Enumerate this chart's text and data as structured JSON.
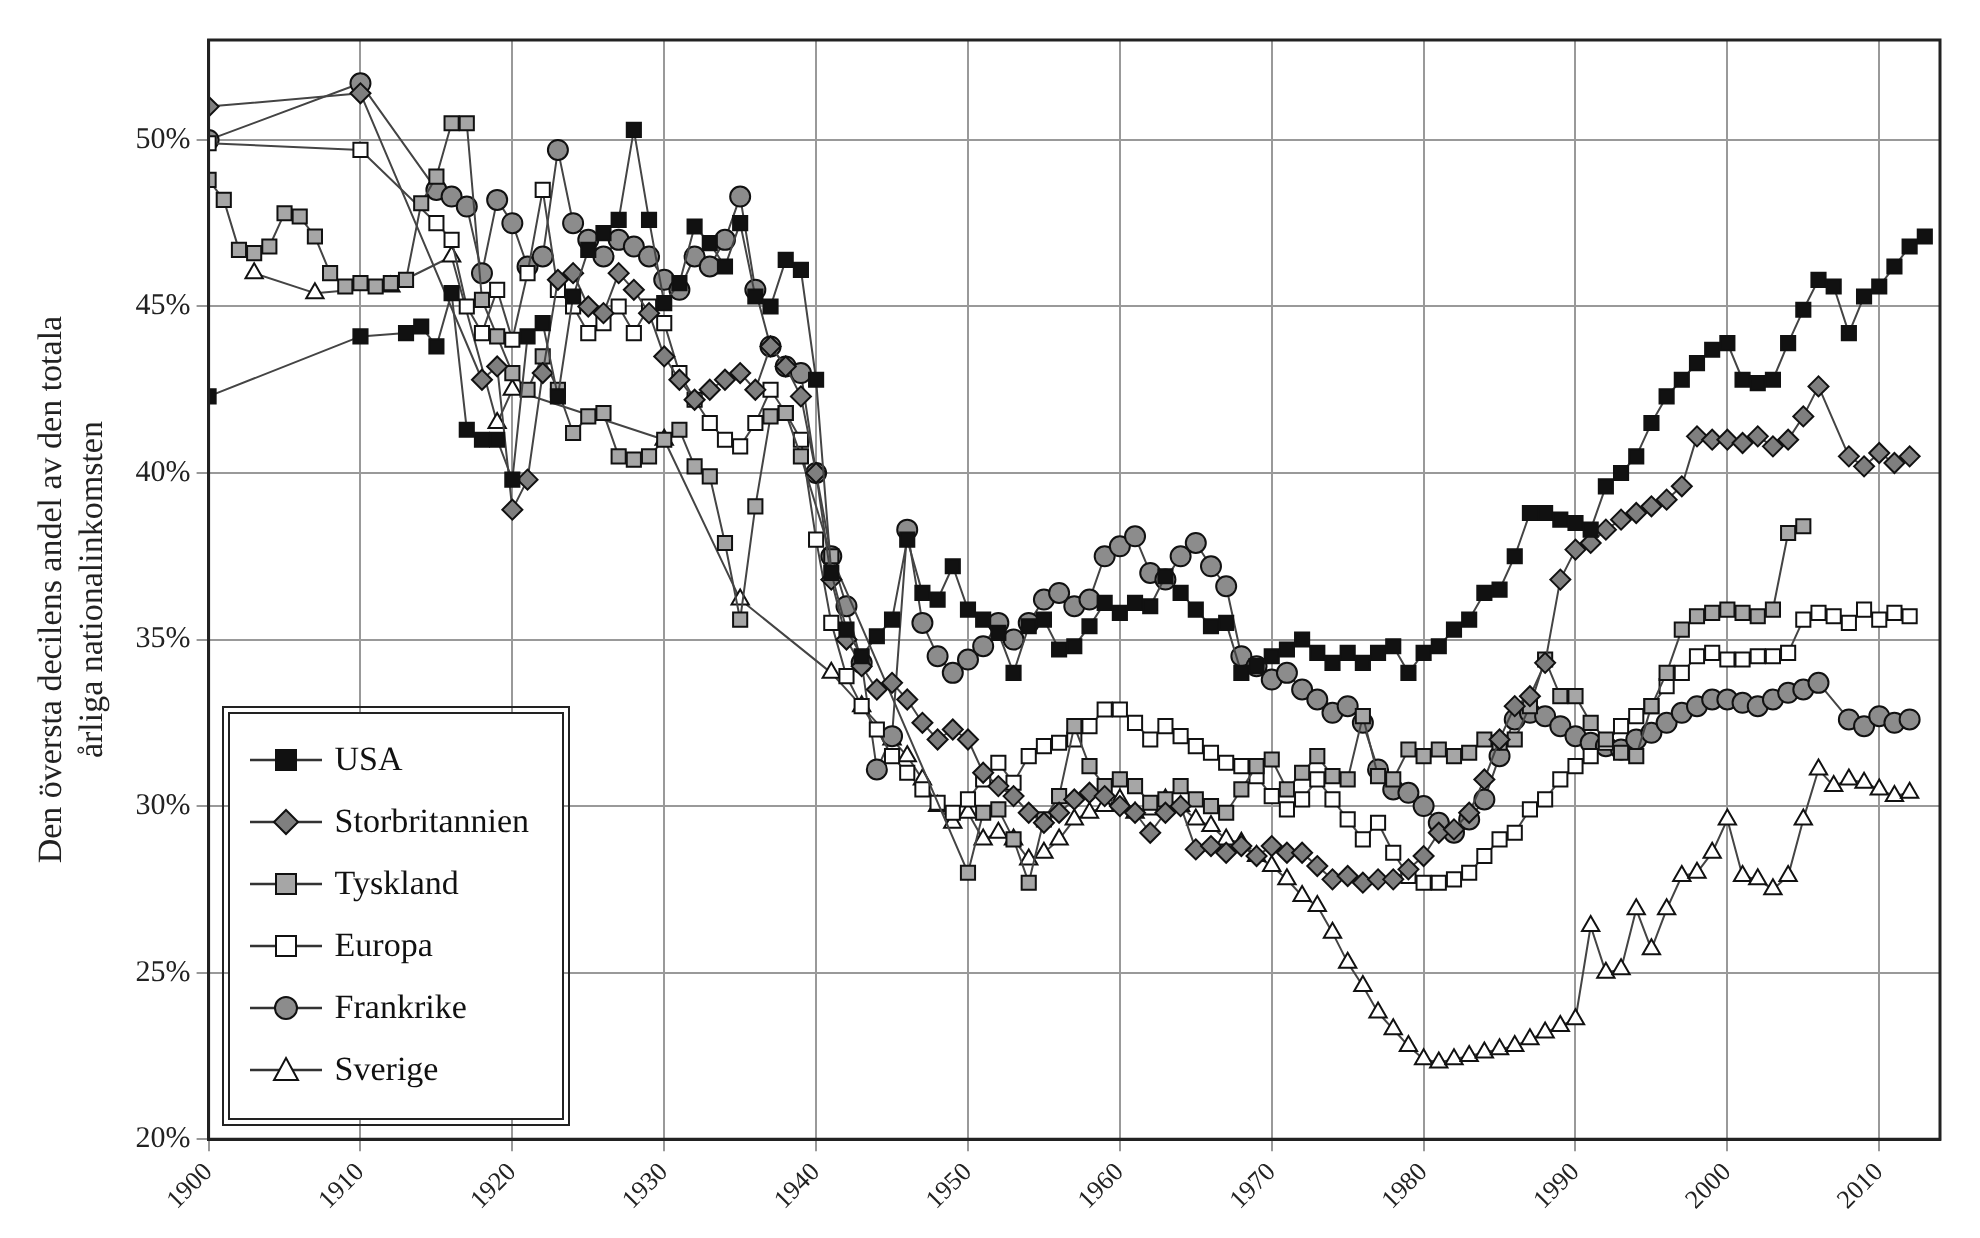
{
  "chart_data": {
    "type": "line",
    "ylabel": "Den översta decilens andel av den totala\nårliga nationalinkomsten",
    "xlim": [
      1900,
      2014
    ],
    "ylim": [
      20,
      53
    ],
    "xticks": [
      1900,
      1910,
      1920,
      1930,
      1940,
      1950,
      1960,
      1970,
      1980,
      1990,
      2000,
      2010
    ],
    "yticks": [
      {
        "value": 20,
        "label": "20%"
      },
      {
        "value": 25,
        "label": "25%"
      },
      {
        "value": 30,
        "label": "30%"
      },
      {
        "value": 35,
        "label": "35%"
      },
      {
        "value": 40,
        "label": "40%"
      },
      {
        "value": 45,
        "label": "45%"
      },
      {
        "value": 50,
        "label": "50%"
      }
    ],
    "grid": true,
    "legend": "bottom left",
    "line_style": "solid",
    "series": [
      {
        "name": "USA",
        "color": "#111111",
        "marker": "square",
        "x": [
          1900,
          1910,
          1913,
          1914,
          1915,
          1916,
          1917,
          1918,
          1919,
          1920,
          1921,
          1922,
          1923,
          1924,
          1925,
          1926,
          1927,
          1928,
          1929,
          1930,
          1931,
          1932,
          1933,
          1934,
          1935,
          1936,
          1937,
          1938,
          1939,
          1940,
          1941,
          1942,
          1943,
          1944,
          1945,
          1946,
          1947,
          1948,
          1949,
          1950,
          1951,
          1952,
          1953,
          1954,
          1955,
          1956,
          1957,
          1958,
          1959,
          1960,
          1961,
          1962,
          1963,
          1964,
          1965,
          1966,
          1967,
          1968,
          1969,
          1970,
          1971,
          1972,
          1973,
          1974,
          1975,
          1976,
          1977,
          1978,
          1979,
          1980,
          1981,
          1982,
          1983,
          1984,
          1985,
          1986,
          1987,
          1988,
          1989,
          1990,
          1991,
          1992,
          1993,
          1994,
          1995,
          1996,
          1997,
          1998,
          1999,
          2000,
          2001,
          2002,
          2003,
          2004,
          2005,
          2006,
          2007,
          2008,
          2009,
          2010,
          2011,
          2012,
          2013
        ],
        "values": [
          42.3,
          44.1,
          44.2,
          44.4,
          43.8,
          45.4,
          41.3,
          41.0,
          41.0,
          39.8,
          44.1,
          44.5,
          42.3,
          45.3,
          46.7,
          47.2,
          47.6,
          50.3,
          47.6,
          45.1,
          45.7,
          47.4,
          46.9,
          46.2,
          47.5,
          45.3,
          45.0,
          46.4,
          46.1,
          42.8,
          37.0,
          35.3,
          34.5,
          35.1,
          35.6,
          38.0,
          36.4,
          36.2,
          37.2,
          35.9,
          35.6,
          35.2,
          34.0,
          35.4,
          35.6,
          34.7,
          34.8,
          35.4,
          36.1,
          35.8,
          36.1,
          36.0,
          36.9,
          36.4,
          35.9,
          35.4,
          35.5,
          34.0,
          34.2,
          34.5,
          34.7,
          35.0,
          34.6,
          34.3,
          34.6,
          34.3,
          34.6,
          34.8,
          34.0,
          34.6,
          34.8,
          35.3,
          35.6,
          36.4,
          36.5,
          37.5,
          38.8,
          38.8,
          38.6,
          38.5,
          38.3,
          39.6,
          40.0,
          40.5,
          41.5,
          42.3,
          42.8,
          43.3,
          43.7,
          43.9,
          42.8,
          42.7,
          42.8,
          43.9,
          44.9,
          45.8,
          45.6,
          44.2,
          45.3,
          45.6,
          46.2,
          46.8,
          47.1
        ]
      },
      {
        "name": "Storbritannien",
        "color": "#7f7f7f",
        "marker": "diamond",
        "x": [
          1900,
          1910,
          1918,
          1919,
          1920,
          1921,
          1922,
          1923,
          1924,
          1925,
          1926,
          1927,
          1928,
          1929,
          1930,
          1931,
          1932,
          1933,
          1934,
          1935,
          1936,
          1937,
          1938,
          1939,
          1940,
          1941,
          1942,
          1943,
          1944,
          1945,
          1946,
          1947,
          1948,
          1949,
          1950,
          1951,
          1952,
          1953,
          1954,
          1955,
          1956,
          1957,
          1958,
          1959,
          1960,
          1961,
          1962,
          1963,
          1964,
          1965,
          1966,
          1967,
          1968,
          1969,
          1970,
          1971,
          1972,
          1973,
          1974,
          1975,
          1976,
          1977,
          1978,
          1979,
          1980,
          1981,
          1982,
          1983,
          1984,
          1985,
          1986,
          1987,
          1988,
          1989,
          1990,
          1991,
          1992,
          1993,
          1994,
          1995,
          1996,
          1997,
          1998,
          1999,
          2000,
          2001,
          2002,
          2003,
          2004,
          2005,
          2006,
          2008,
          2009,
          2010,
          2011,
          2012
        ],
        "values": [
          51.0,
          51.4,
          42.8,
          43.2,
          38.9,
          39.8,
          43.0,
          45.8,
          46.0,
          45.0,
          44.8,
          46.0,
          45.5,
          44.8,
          43.5,
          42.8,
          42.2,
          42.5,
          42.8,
          43.0,
          42.5,
          43.8,
          43.2,
          42.3,
          40.0,
          36.8,
          35.0,
          34.2,
          33.5,
          33.7,
          33.2,
          32.5,
          32.0,
          32.3,
          32.0,
          31.0,
          30.6,
          30.3,
          29.8,
          29.5,
          29.8,
          30.2,
          30.4,
          30.3,
          30.0,
          29.8,
          29.2,
          29.8,
          30.0,
          28.7,
          28.8,
          28.6,
          28.8,
          28.5,
          28.8,
          28.6,
          28.6,
          28.2,
          27.8,
          27.9,
          27.7,
          27.8,
          27.8,
          28.1,
          28.5,
          29.2,
          29.3,
          29.8,
          30.8,
          32.0,
          33.0,
          33.3,
          34.3,
          36.8,
          37.7,
          37.9,
          38.3,
          38.6,
          38.8,
          39.0,
          39.2,
          39.6,
          41.1,
          41.0,
          41.0,
          40.9,
          41.1,
          40.8,
          41.0,
          41.7,
          42.6,
          40.5,
          40.2,
          40.6,
          40.3,
          40.5
        ]
      },
      {
        "name": "Tyskland",
        "color": "#a6a6a6",
        "marker": "square",
        "x": [
          1900,
          1901,
          1902,
          1903,
          1904,
          1905,
          1906,
          1907,
          1908,
          1909,
          1910,
          1911,
          1912,
          1913,
          1914,
          1915,
          1916,
          1917,
          1918,
          1919,
          1920,
          1921,
          1922,
          1923,
          1924,
          1925,
          1926,
          1927,
          1928,
          1929,
          1930,
          1931,
          1932,
          1933,
          1934,
          1935,
          1936,
          1937,
          1938,
          1939,
          1941,
          1950,
          1951,
          1952,
          1953,
          1954,
          1955,
          1956,
          1957,
          1958,
          1959,
          1960,
          1961,
          1962,
          1963,
          1964,
          1965,
          1966,
          1967,
          1968,
          1969,
          1970,
          1971,
          1972,
          1973,
          1974,
          1975,
          1976,
          1977,
          1978,
          1979,
          1980,
          1981,
          1982,
          1983,
          1984,
          1985,
          1986,
          1987,
          1988,
          1989,
          1990,
          1991,
          1992,
          1993,
          1994,
          1995,
          1996,
          1997,
          1998,
          1999,
          2000,
          2001,
          2002,
          2003,
          2004,
          2005
        ],
        "values": [
          48.8,
          48.2,
          46.7,
          46.6,
          46.8,
          47.8,
          47.7,
          47.1,
          46.0,
          45.6,
          45.7,
          45.6,
          45.7,
          45.8,
          48.1,
          48.9,
          50.5,
          50.5,
          45.2,
          44.1,
          43.0,
          42.5,
          43.5,
          42.5,
          41.2,
          41.7,
          41.8,
          40.5,
          40.4,
          40.5,
          41.0,
          41.3,
          40.2,
          39.9,
          37.9,
          35.6,
          39.0,
          41.7,
          41.8,
          40.5,
          37.5,
          28.0,
          29.8,
          29.9,
          29.0,
          27.7,
          29.6,
          30.3,
          32.4,
          31.2,
          30.6,
          30.8,
          30.6,
          30.1,
          30.2,
          30.6,
          30.2,
          30.0,
          29.8,
          30.5,
          31.2,
          31.4,
          30.5,
          31.0,
          31.5,
          30.9,
          30.8,
          32.7,
          30.9,
          30.8,
          31.7,
          31.5,
          31.7,
          31.5,
          31.6,
          32.0,
          31.9,
          32.0,
          33.0,
          34.4,
          33.3,
          33.3,
          32.5,
          32.0,
          31.6,
          31.5,
          33.0,
          34.0,
          35.3,
          35.7,
          35.8,
          35.9,
          35.8,
          35.7,
          35.9,
          38.2,
          38.4
        ]
      },
      {
        "name": "Europa",
        "color": "#ffffff",
        "marker": "square",
        "x": [
          1900,
          1910,
          1915,
          1916,
          1917,
          1918,
          1919,
          1920,
          1921,
          1922,
          1923,
          1924,
          1925,
          1926,
          1927,
          1928,
          1929,
          1930,
          1931,
          1932,
          1933,
          1934,
          1935,
          1936,
          1937,
          1938,
          1939,
          1940,
          1941,
          1942,
          1943,
          1944,
          1945,
          1946,
          1947,
          1948,
          1949,
          1950,
          1951,
          1952,
          1953,
          1954,
          1955,
          1956,
          1957,
          1958,
          1959,
          1960,
          1961,
          1962,
          1963,
          1964,
          1965,
          1966,
          1967,
          1968,
          1969,
          1970,
          1971,
          1972,
          1973,
          1974,
          1975,
          1976,
          1977,
          1978,
          1979,
          1980,
          1981,
          1982,
          1983,
          1984,
          1985,
          1986,
          1987,
          1988,
          1989,
          1990,
          1991,
          1992,
          1993,
          1994,
          1995,
          1996,
          1997,
          1998,
          1999,
          2000,
          2001,
          2002,
          2003,
          2004,
          2005,
          2006,
          2007,
          2008,
          2009,
          2010,
          2011,
          2012
        ],
        "values": [
          49.9,
          49.7,
          47.5,
          47.0,
          45.0,
          44.2,
          45.5,
          44.0,
          46.0,
          48.5,
          45.5,
          45.0,
          44.2,
          44.5,
          45.0,
          44.2,
          45.0,
          44.5,
          43.0,
          42.2,
          41.5,
          41.0,
          40.8,
          41.5,
          42.5,
          41.8,
          41.0,
          38.0,
          35.5,
          33.9,
          33.0,
          32.3,
          31.5,
          31.0,
          30.5,
          30.1,
          29.8,
          30.2,
          30.8,
          31.3,
          30.7,
          31.5,
          31.8,
          31.9,
          32.0,
          32.4,
          32.9,
          32.9,
          32.5,
          32.0,
          32.4,
          32.1,
          31.8,
          31.6,
          31.3,
          31.2,
          30.9,
          30.3,
          29.9,
          30.2,
          30.8,
          30.2,
          29.6,
          29.0,
          29.5,
          28.6,
          27.9,
          27.7,
          27.7,
          27.8,
          28.0,
          28.5,
          29.0,
          29.2,
          29.9,
          30.2,
          30.8,
          31.2,
          31.5,
          31.9,
          32.4,
          32.7,
          33.0,
          33.6,
          34.0,
          34.5,
          34.6,
          34.4,
          34.4,
          34.5,
          34.5,
          34.6,
          35.6,
          35.8,
          35.7,
          35.5,
          35.9,
          35.6,
          35.8,
          35.7
        ]
      },
      {
        "name": "Frankrike",
        "color": "#8c8c8c",
        "marker": "circle",
        "x": [
          1900,
          1910,
          1915,
          1916,
          1917,
          1918,
          1919,
          1920,
          1921,
          1922,
          1923,
          1924,
          1925,
          1926,
          1927,
          1928,
          1929,
          1930,
          1931,
          1932,
          1933,
          1934,
          1935,
          1936,
          1937,
          1938,
          1939,
          1940,
          1941,
          1942,
          1943,
          1944,
          1945,
          1946,
          1947,
          1948,
          1949,
          1950,
          1951,
          1952,
          1953,
          1954,
          1955,
          1956,
          1957,
          1958,
          1959,
          1960,
          1961,
          1962,
          1963,
          1964,
          1965,
          1966,
          1967,
          1968,
          1969,
          1970,
          1971,
          1972,
          1973,
          1974,
          1975,
          1976,
          1977,
          1978,
          1979,
          1980,
          1981,
          1982,
          1983,
          1984,
          1985,
          1986,
          1987,
          1988,
          1989,
          1990,
          1991,
          1992,
          1993,
          1994,
          1995,
          1996,
          1997,
          1998,
          1999,
          2000,
          2001,
          2002,
          2003,
          2004,
          2005,
          2006,
          2008,
          2009,
          2010,
          2011,
          2012
        ],
        "values": [
          50.0,
          51.7,
          48.5,
          48.3,
          48.0,
          46.0,
          48.2,
          47.5,
          46.2,
          46.5,
          49.7,
          47.5,
          47.0,
          46.5,
          47.0,
          46.8,
          46.5,
          45.8,
          45.5,
          46.5,
          46.2,
          47.0,
          48.3,
          45.5,
          43.8,
          43.2,
          43.0,
          40.0,
          37.5,
          36.0,
          34.3,
          31.1,
          32.1,
          38.3,
          35.5,
          34.5,
          34.0,
          34.4,
          34.8,
          35.5,
          35.0,
          35.5,
          36.2,
          36.4,
          36.0,
          36.2,
          37.5,
          37.8,
          38.1,
          37.0,
          36.8,
          37.5,
          37.9,
          37.2,
          36.6,
          34.5,
          34.2,
          33.8,
          34.0,
          33.5,
          33.2,
          32.8,
          33.0,
          32.5,
          31.1,
          30.5,
          30.4,
          30.0,
          29.5,
          29.2,
          29.6,
          30.2,
          31.5,
          32.6,
          32.8,
          32.7,
          32.4,
          32.1,
          31.9,
          31.8,
          31.7,
          32.0,
          32.2,
          32.5,
          32.8,
          33.0,
          33.2,
          33.2,
          33.1,
          33.0,
          33.2,
          33.4,
          33.5,
          33.7,
          32.6,
          32.4,
          32.7,
          32.5,
          32.6
        ]
      },
      {
        "name": "Sverige",
        "color": "#ffffff",
        "marker": "triangle",
        "x": [
          1903,
          1907,
          1912,
          1916,
          1919,
          1920,
          1930,
          1935,
          1941,
          1943,
          1945,
          1946,
          1947,
          1948,
          1949,
          1950,
          1951,
          1952,
          1953,
          1954,
          1955,
          1956,
          1957,
          1958,
          1959,
          1960,
          1961,
          1962,
          1963,
          1964,
          1965,
          1966,
          1967,
          1968,
          1969,
          1970,
          1971,
          1972,
          1973,
          1974,
          1975,
          1976,
          1977,
          1978,
          1979,
          1980,
          1981,
          1982,
          1983,
          1984,
          1985,
          1986,
          1987,
          1988,
          1989,
          1990,
          1991,
          1992,
          1993,
          1994,
          1995,
          1996,
          1997,
          1998,
          1999,
          2000,
          2001,
          2002,
          2003,
          2004,
          2005,
          2006,
          2007,
          2008,
          2009,
          2010,
          2011,
          2012
        ],
        "values": [
          46.0,
          45.4,
          45.6,
          46.5,
          41.5,
          42.5,
          41.0,
          36.2,
          34.0,
          33.0,
          32.0,
          31.5,
          30.8,
          30.0,
          29.5,
          29.8,
          29.0,
          29.2,
          29.0,
          28.4,
          28.6,
          29.0,
          29.6,
          29.8,
          30.0,
          30.2,
          29.8,
          29.9,
          30.2,
          30.0,
          29.6,
          29.4,
          29.0,
          28.9,
          28.5,
          28.2,
          27.8,
          27.3,
          27.0,
          26.2,
          25.3,
          24.6,
          23.8,
          23.3,
          22.8,
          22.4,
          22.3,
          22.4,
          22.5,
          22.6,
          22.7,
          22.8,
          23.0,
          23.2,
          23.4,
          23.6,
          26.4,
          25.0,
          25.1,
          26.9,
          25.7,
          26.9,
          27.9,
          28.0,
          28.6,
          29.6,
          27.9,
          27.8,
          27.5,
          27.9,
          29.6,
          31.1,
          30.6,
          30.8,
          30.7,
          30.5,
          30.3,
          30.4
        ]
      }
    ]
  }
}
